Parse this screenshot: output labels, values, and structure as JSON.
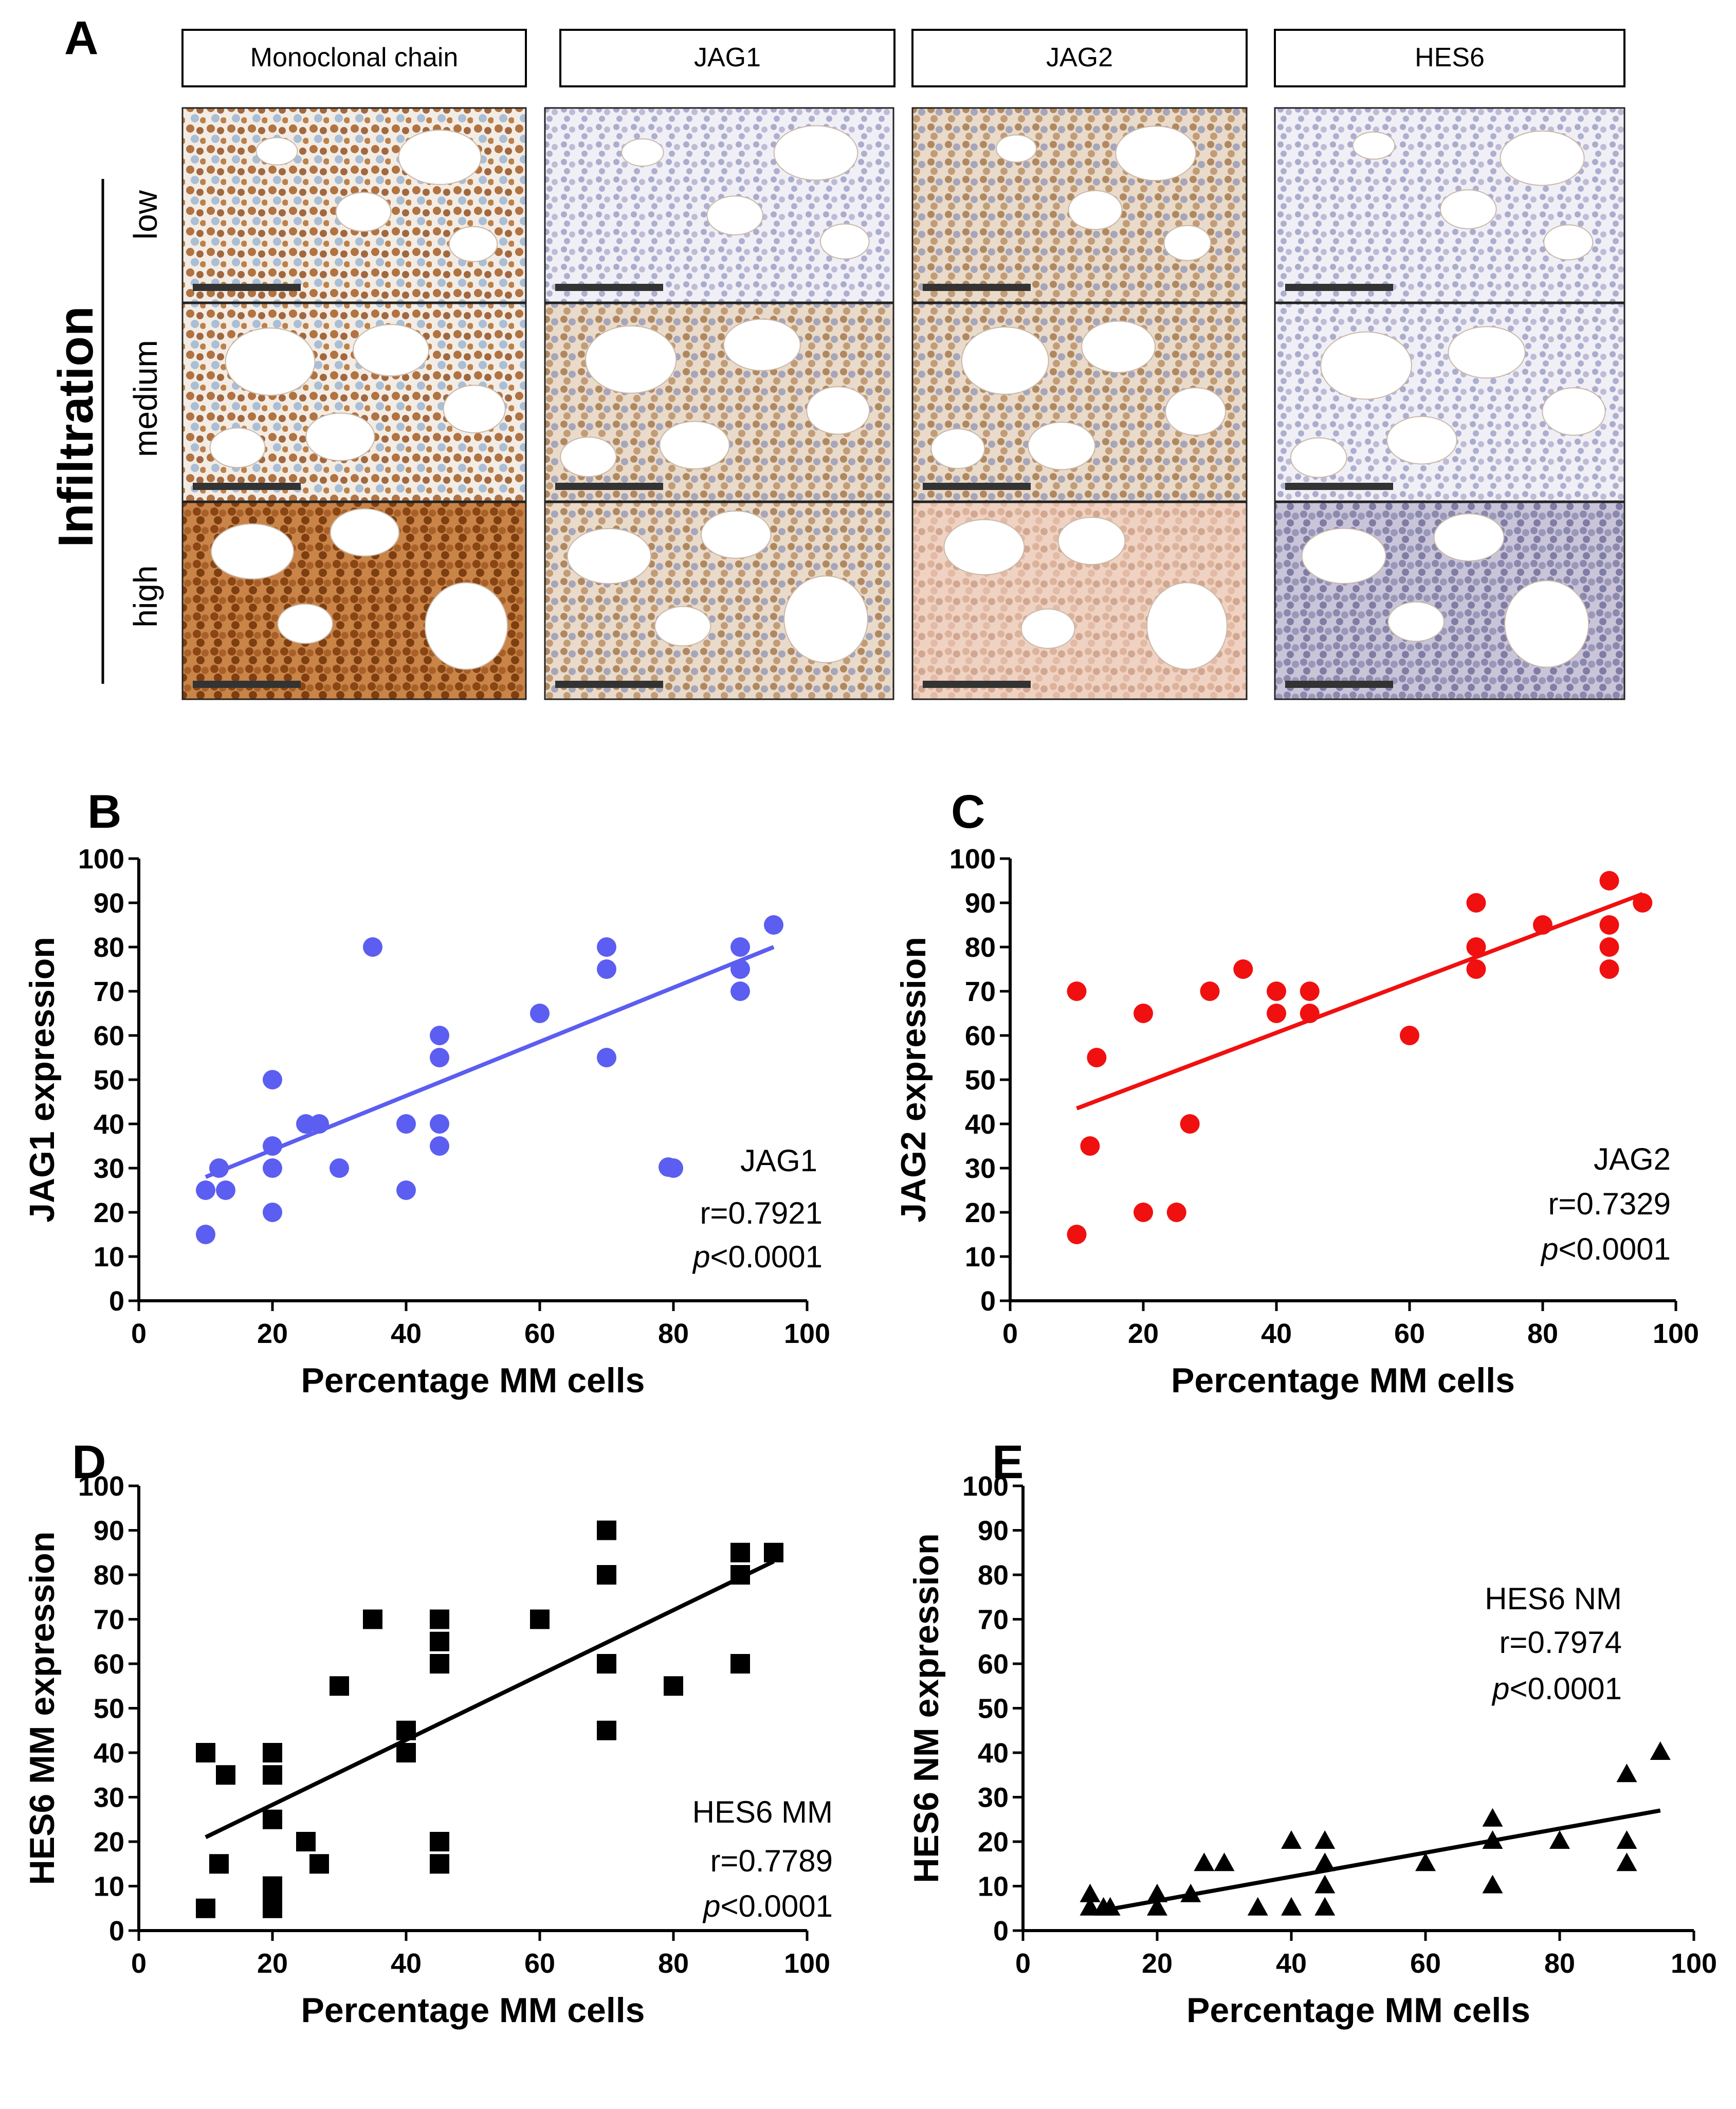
{
  "panel_a": {
    "letter": "A",
    "columns": [
      "Monoclonal chain",
      "JAG1",
      "JAG2",
      "HES6"
    ],
    "rows": [
      "low",
      "medium",
      "high"
    ],
    "side_label": "Infiltration"
  },
  "chart_data": [
    {
      "panel": "B",
      "type": "scatter",
      "marker": "circle",
      "color": "#5b5ef0",
      "xlabel": "Percentage MM cells",
      "ylabel": "JAG1 expression",
      "xlim": [
        0,
        100
      ],
      "ylim": [
        0,
        100
      ],
      "xticks": [
        0,
        20,
        40,
        60,
        80,
        100
      ],
      "yticks": [
        0,
        10,
        20,
        30,
        40,
        50,
        60,
        70,
        80,
        90,
        100
      ],
      "points": [
        [
          10,
          15
        ],
        [
          10,
          25
        ],
        [
          12,
          30
        ],
        [
          13,
          25
        ],
        [
          20,
          20
        ],
        [
          20,
          30
        ],
        [
          20,
          35
        ],
        [
          20,
          50
        ],
        [
          25,
          40
        ],
        [
          27,
          40
        ],
        [
          30,
          30
        ],
        [
          35,
          80
        ],
        [
          40,
          25
        ],
        [
          40,
          40
        ],
        [
          45,
          35
        ],
        [
          45,
          40
        ],
        [
          45,
          55
        ],
        [
          45,
          60
        ],
        [
          60,
          65
        ],
        [
          70,
          55
        ],
        [
          70,
          75
        ],
        [
          70,
          80
        ],
        [
          80,
          30
        ],
        [
          90,
          70
        ],
        [
          90,
          75
        ],
        [
          90,
          80
        ],
        [
          95,
          85
        ]
      ],
      "fit": [
        [
          10,
          28
        ],
        [
          95,
          80
        ]
      ],
      "legend": "JAG1",
      "annotation_r": "r=0.7921",
      "annotation_p": "p<0.0001"
    },
    {
      "panel": "C",
      "type": "scatter",
      "marker": "circle",
      "color": "#f01010",
      "xlabel": "Percentage MM cells",
      "ylabel": "JAG2 expression",
      "xlim": [
        0,
        100
      ],
      "ylim": [
        0,
        100
      ],
      "xticks": [
        0,
        20,
        40,
        60,
        80,
        100
      ],
      "yticks": [
        0,
        10,
        20,
        30,
        40,
        50,
        60,
        70,
        80,
        90,
        100
      ],
      "points": [
        [
          10,
          15
        ],
        [
          10,
          70
        ],
        [
          12,
          35
        ],
        [
          13,
          55
        ],
        [
          20,
          20
        ],
        [
          20,
          65
        ],
        [
          25,
          20
        ],
        [
          27,
          40
        ],
        [
          30,
          70
        ],
        [
          35,
          75
        ],
        [
          40,
          65
        ],
        [
          40,
          70
        ],
        [
          45,
          65
        ],
        [
          45,
          70
        ],
        [
          60,
          60
        ],
        [
          70,
          75
        ],
        [
          70,
          80
        ],
        [
          70,
          90
        ],
        [
          80,
          85
        ],
        [
          90,
          75
        ],
        [
          90,
          80
        ],
        [
          90,
          85
        ],
        [
          90,
          95
        ],
        [
          95,
          90
        ]
      ],
      "fit": [
        [
          10,
          43.5
        ],
        [
          95,
          92
        ]
      ],
      "legend": "JAG2",
      "annotation_r": "r=0.7329",
      "annotation_p": "p<0.0001"
    },
    {
      "panel": "D",
      "type": "scatter",
      "marker": "square",
      "color": "#000000",
      "xlabel": "Percentage MM cells",
      "ylabel": "HES6 MM expression",
      "xlim": [
        0,
        100
      ],
      "ylim": [
        0,
        100
      ],
      "xticks": [
        0,
        20,
        40,
        60,
        80,
        100
      ],
      "yticks": [
        0,
        10,
        20,
        30,
        40,
        50,
        60,
        70,
        80,
        90,
        100
      ],
      "points": [
        [
          10,
          5
        ],
        [
          10,
          40
        ],
        [
          12,
          15
        ],
        [
          13,
          35
        ],
        [
          20,
          5
        ],
        [
          20,
          8
        ],
        [
          20,
          10
        ],
        [
          20,
          25
        ],
        [
          20,
          35
        ],
        [
          20,
          40
        ],
        [
          25,
          20
        ],
        [
          27,
          15
        ],
        [
          30,
          55
        ],
        [
          35,
          70
        ],
        [
          40,
          40
        ],
        [
          40,
          45
        ],
        [
          45,
          15
        ],
        [
          45,
          20
        ],
        [
          45,
          60
        ],
        [
          45,
          65
        ],
        [
          45,
          70
        ],
        [
          60,
          70
        ],
        [
          70,
          45
        ],
        [
          70,
          60
        ],
        [
          70,
          80
        ],
        [
          70,
          90
        ],
        [
          80,
          55
        ],
        [
          90,
          60
        ],
        [
          90,
          80
        ],
        [
          90,
          85
        ],
        [
          95,
          85
        ]
      ],
      "fit": [
        [
          10,
          21
        ],
        [
          95,
          83
        ]
      ],
      "legend": "HES6 MM",
      "annotation_r": "r=0.7789",
      "annotation_p": "p<0.0001"
    },
    {
      "panel": "E",
      "type": "scatter",
      "marker": "triangle",
      "color": "#000000",
      "xlabel": "Percentage MM cells",
      "ylabel": "HES6 NM expression",
      "xlim": [
        0,
        100
      ],
      "ylim": [
        0,
        100
      ],
      "xticks": [
        0,
        20,
        40,
        60,
        80,
        100
      ],
      "yticks": [
        0,
        10,
        20,
        30,
        40,
        50,
        60,
        70,
        80,
        90,
        100
      ],
      "points": [
        [
          10,
          5
        ],
        [
          10,
          8
        ],
        [
          12,
          5
        ],
        [
          13,
          5
        ],
        [
          20,
          5
        ],
        [
          20,
          8
        ],
        [
          25,
          8
        ],
        [
          27,
          15
        ],
        [
          30,
          15
        ],
        [
          35,
          5
        ],
        [
          40,
          5
        ],
        [
          40,
          20
        ],
        [
          45,
          5
        ],
        [
          45,
          10
        ],
        [
          45,
          15
        ],
        [
          45,
          20
        ],
        [
          60,
          15
        ],
        [
          70,
          10
        ],
        [
          70,
          20
        ],
        [
          70,
          25
        ],
        [
          80,
          20
        ],
        [
          90,
          15
        ],
        [
          90,
          20
        ],
        [
          90,
          35
        ],
        [
          95,
          40
        ]
      ],
      "fit": [
        [
          10,
          4
        ],
        [
          95,
          27
        ]
      ],
      "legend": "HES6 NM",
      "annotation_r": "r=0.7974",
      "annotation_p": "p<0.0001"
    }
  ]
}
